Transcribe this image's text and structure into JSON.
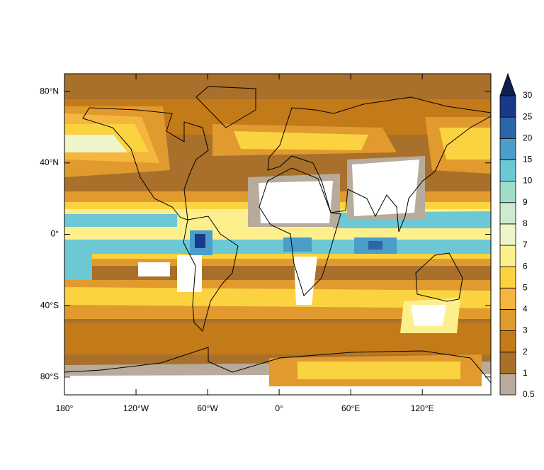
{
  "map": {
    "xlim": [
      -180,
      177.5
    ],
    "ylim": [
      -90,
      90
    ],
    "xticks": [
      {
        "value": -180,
        "label": "180°"
      },
      {
        "value": -120,
        "label": "120°W"
      },
      {
        "value": -60,
        "label": "60°W"
      },
      {
        "value": 0,
        "label": "0°"
      },
      {
        "value": 60,
        "label": "60°E"
      },
      {
        "value": 120,
        "label": "120°E"
      }
    ],
    "yticks": [
      {
        "value": 80,
        "label": "80°N"
      },
      {
        "value": 40,
        "label": "40°N"
      },
      {
        "value": 0,
        "label": "0°"
      },
      {
        "value": -40,
        "label": "40°S"
      },
      {
        "value": -80,
        "label": "80°S"
      }
    ],
    "colorbar": {
      "levels": [
        0.5,
        1,
        2,
        3,
        4,
        5,
        6,
        7,
        8,
        9,
        10,
        15,
        20,
        25,
        30
      ],
      "colors": [
        "#b8ab9b",
        "#a8702a",
        "#c37a18",
        "#e19a2e",
        "#f5b640",
        "#fbd341",
        "#fdf08c",
        "#eef6c9",
        "#cfeacf",
        "#a0dcca",
        "#6cc8d4",
        "#4a9ec9",
        "#2c66a8",
        "#193a8a",
        "#0c1f4d"
      ]
    }
  }
}
